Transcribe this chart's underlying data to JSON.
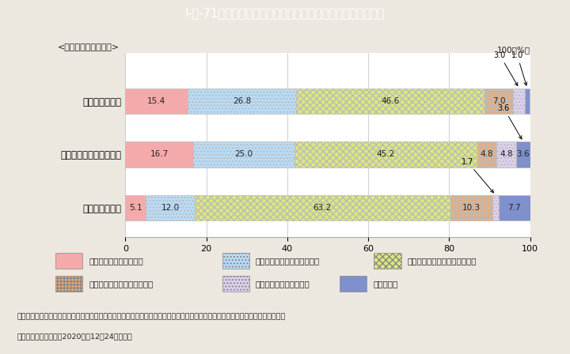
{
  "title": "I-特-71図　家庭内の家事・育児分担の変化と夫婦関係の変化",
  "title_bg": "#5BB8C8",
  "title_color": "white",
  "categories": [
    "夫の役割が増加",
    "夫・妻ともに役割が増加",
    "妻の役割が増加"
  ],
  "category_label": "<役割分担の変化内容>",
  "series": [
    {
      "label": "夫婦の関係が良くなった",
      "fc": "#F4AAAA",
      "ec": "#BBBBBB",
      "hatch": "",
      "values": [
        15.4,
        16.7,
        5.1
      ]
    },
    {
      "label": "夫婦の関係がやや良くなった",
      "fc": "#B8DCF8",
      "ec": "#BBBBBB",
      "hatch": "....",
      "values": [
        26.8,
        25.0,
        12.0
      ]
    },
    {
      "label": "夫婦の関係はおおむね変化ない",
      "fc": "#DCE87A",
      "ec": "#BBBBBB",
      "hatch": "xxxx",
      "values": [
        46.6,
        45.2,
        63.2
      ]
    },
    {
      "label": "夫婦の関係がやや悪くなった",
      "fc": "#F0A870",
      "ec": "#BBBBBB",
      "hatch": "++++",
      "values": [
        7.0,
        4.8,
        10.3
      ]
    },
    {
      "label": "夫婦の関係が悪くなった",
      "fc": "#DDD0EE",
      "ec": "#BBBBBB",
      "hatch": "....",
      "values": [
        3.0,
        4.8,
        1.7
      ]
    },
    {
      "label": "わからない",
      "fc": "#8090CC",
      "ec": "#BBBBBB",
      "hatch": "",
      "values": [
        1.0,
        3.6,
        7.7
      ]
    }
  ],
  "footnote1": "（備考）１．内閣府「第２回　新型コロナウイルス感染症の影響下における生活意識・行動の変化に関する調査」より引用・作成。",
  "footnote2": "　　　　２．令和２（2020）年12月24日公表。",
  "bg_color": "#EDE8DF",
  "plot_bg": "#FFFFFF"
}
